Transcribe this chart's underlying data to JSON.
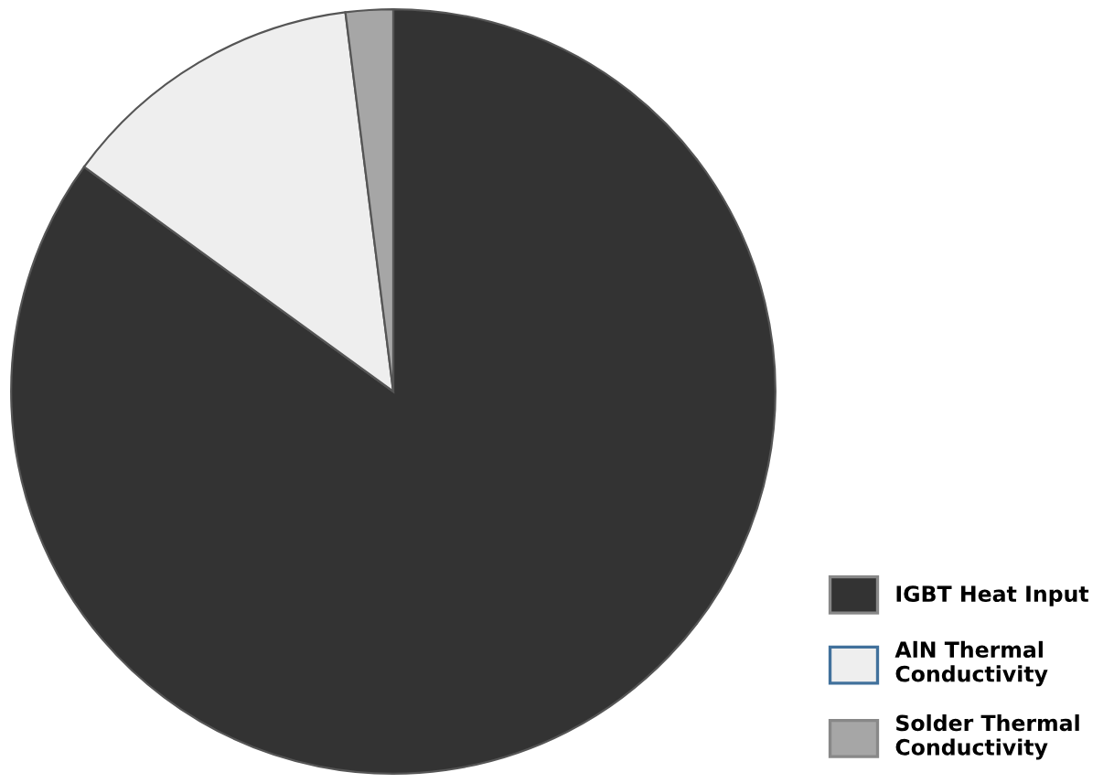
{
  "chart_data": {
    "type": "pie",
    "categories": [
      "IGBT Heat Input",
      "AlN Thermal Conductivity",
      "Solder Thermal Conductivity"
    ],
    "values": [
      85,
      13,
      2
    ],
    "colors": [
      "#333333",
      "#eeeeee",
      "#a6a6a6"
    ],
    "legend": "bottom right"
  }
}
